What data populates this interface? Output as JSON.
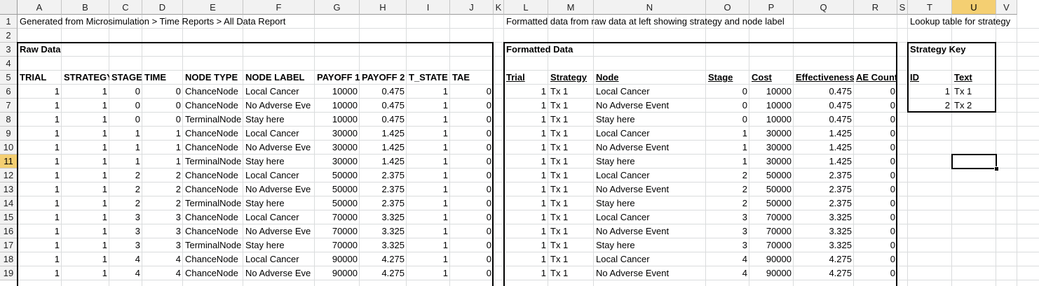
{
  "columns": [
    "A",
    "B",
    "C",
    "D",
    "E",
    "F",
    "G",
    "H",
    "I",
    "J",
    "K",
    "L",
    "M",
    "N",
    "O",
    "P",
    "Q",
    "R",
    "S",
    "T",
    "U",
    "V"
  ],
  "rows": [
    "1",
    "2",
    "3",
    "4",
    "5",
    "6",
    "7",
    "8",
    "9",
    "10",
    "11",
    "12",
    "13",
    "14",
    "15",
    "16",
    "17",
    "18",
    "19"
  ],
  "selected_cell": "U11",
  "notes": {
    "raw_source": "Generated from Microsimulation > Time Reports > All Data Report",
    "formatted_source": "Formatted data from raw data at left showing strategy and node label",
    "lookup_note": "Lookup table for strategy"
  },
  "raw_data": {
    "title": "Raw Data",
    "headers": [
      "TRIAL",
      "STRATEGY",
      "STAGE",
      "TIME",
      "NODE TYPE",
      "NODE LABEL",
      "PAYOFF 1",
      "PAYOFF 2",
      "T_STATE",
      "TAE"
    ],
    "rows": [
      [
        "1",
        "1",
        "0",
        "0",
        "ChanceNode",
        "Local Cancer",
        "10000",
        "0.475",
        "1",
        "0"
      ],
      [
        "1",
        "1",
        "0",
        "0",
        "ChanceNode",
        "No Adverse Eve",
        "10000",
        "0.475",
        "1",
        "0"
      ],
      [
        "1",
        "1",
        "0",
        "0",
        "TerminalNode",
        "Stay here",
        "10000",
        "0.475",
        "1",
        "0"
      ],
      [
        "1",
        "1",
        "1",
        "1",
        "ChanceNode",
        "Local Cancer",
        "30000",
        "1.425",
        "1",
        "0"
      ],
      [
        "1",
        "1",
        "1",
        "1",
        "ChanceNode",
        "No Adverse Eve",
        "30000",
        "1.425",
        "1",
        "0"
      ],
      [
        "1",
        "1",
        "1",
        "1",
        "TerminalNode",
        "Stay here",
        "30000",
        "1.425",
        "1",
        "0"
      ],
      [
        "1",
        "1",
        "2",
        "2",
        "ChanceNode",
        "Local Cancer",
        "50000",
        "2.375",
        "1",
        "0"
      ],
      [
        "1",
        "1",
        "2",
        "2",
        "ChanceNode",
        "No Adverse Eve",
        "50000",
        "2.375",
        "1",
        "0"
      ],
      [
        "1",
        "1",
        "2",
        "2",
        "TerminalNode",
        "Stay here",
        "50000",
        "2.375",
        "1",
        "0"
      ],
      [
        "1",
        "1",
        "3",
        "3",
        "ChanceNode",
        "Local Cancer",
        "70000",
        "3.325",
        "1",
        "0"
      ],
      [
        "1",
        "1",
        "3",
        "3",
        "ChanceNode",
        "No Adverse Eve",
        "70000",
        "3.325",
        "1",
        "0"
      ],
      [
        "1",
        "1",
        "3",
        "3",
        "TerminalNode",
        "Stay here",
        "70000",
        "3.325",
        "1",
        "0"
      ],
      [
        "1",
        "1",
        "4",
        "4",
        "ChanceNode",
        "Local Cancer",
        "90000",
        "4.275",
        "1",
        "0"
      ],
      [
        "1",
        "1",
        "4",
        "4",
        "ChanceNode",
        "No Adverse Eve",
        "90000",
        "4.275",
        "1",
        "0"
      ]
    ]
  },
  "formatted_data": {
    "title": "Formatted Data",
    "headers": [
      "Trial",
      "Strategy",
      "Node",
      "Stage",
      "Cost",
      "Effectiveness",
      "AE Count"
    ],
    "rows": [
      [
        "1",
        "Tx 1",
        "Local Cancer",
        "0",
        "10000",
        "0.475",
        "0"
      ],
      [
        "1",
        "Tx 1",
        "No Adverse Event",
        "0",
        "10000",
        "0.475",
        "0"
      ],
      [
        "1",
        "Tx 1",
        "Stay here",
        "0",
        "10000",
        "0.475",
        "0"
      ],
      [
        "1",
        "Tx 1",
        "Local Cancer",
        "1",
        "30000",
        "1.425",
        "0"
      ],
      [
        "1",
        "Tx 1",
        "No Adverse Event",
        "1",
        "30000",
        "1.425",
        "0"
      ],
      [
        "1",
        "Tx 1",
        "Stay here",
        "1",
        "30000",
        "1.425",
        "0"
      ],
      [
        "1",
        "Tx 1",
        "Local Cancer",
        "2",
        "50000",
        "2.375",
        "0"
      ],
      [
        "1",
        "Tx 1",
        "No Adverse Event",
        "2",
        "50000",
        "2.375",
        "0"
      ],
      [
        "1",
        "Tx 1",
        "Stay here",
        "2",
        "50000",
        "2.375",
        "0"
      ],
      [
        "1",
        "Tx 1",
        "Local Cancer",
        "3",
        "70000",
        "3.325",
        "0"
      ],
      [
        "1",
        "Tx 1",
        "No Adverse Event",
        "3",
        "70000",
        "3.325",
        "0"
      ],
      [
        "1",
        "Tx 1",
        "Stay here",
        "3",
        "70000",
        "3.325",
        "0"
      ],
      [
        "1",
        "Tx 1",
        "Local Cancer",
        "4",
        "90000",
        "4.275",
        "0"
      ],
      [
        "1",
        "Tx 1",
        "No Adverse Event",
        "4",
        "90000",
        "4.275",
        "0"
      ]
    ]
  },
  "strategy_key": {
    "title": "Strategy Key",
    "headers": [
      "ID",
      "Text"
    ],
    "rows": [
      [
        "1",
        "Tx 1"
      ],
      [
        "2",
        "Tx 2"
      ]
    ]
  }
}
